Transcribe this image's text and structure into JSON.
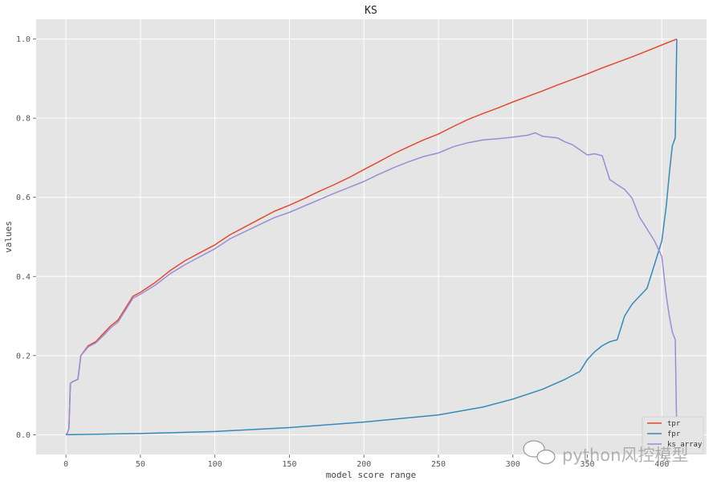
{
  "chart_data": {
    "type": "line",
    "title": "KS",
    "xlabel": "model score range",
    "ylabel": "values",
    "xlim": [
      -20,
      430
    ],
    "ylim": [
      -0.05,
      1.05
    ],
    "xticks": [
      0,
      50,
      100,
      150,
      200,
      250,
      300,
      350,
      400
    ],
    "yticks": [
      0.0,
      0.2,
      0.4,
      0.6,
      0.8,
      1.0
    ],
    "grid": true,
    "legend_position": "lower-right",
    "series": [
      {
        "name": "tpr",
        "color": "#e24a33",
        "x": [
          0,
          1,
          2,
          3,
          5,
          8,
          10,
          15,
          20,
          25,
          30,
          35,
          40,
          45,
          50,
          60,
          70,
          80,
          90,
          100,
          110,
          120,
          130,
          140,
          150,
          160,
          170,
          180,
          190,
          200,
          210,
          220,
          230,
          240,
          250,
          260,
          270,
          280,
          290,
          300,
          310,
          320,
          330,
          340,
          350,
          360,
          370,
          380,
          390,
          400,
          410
        ],
        "y": [
          0.0,
          0.005,
          0.015,
          0.13,
          0.135,
          0.14,
          0.2,
          0.225,
          0.235,
          0.255,
          0.275,
          0.29,
          0.32,
          0.35,
          0.36,
          0.385,
          0.415,
          0.44,
          0.46,
          0.48,
          0.505,
          0.525,
          0.545,
          0.565,
          0.58,
          0.597,
          0.615,
          0.632,
          0.65,
          0.67,
          0.69,
          0.71,
          0.728,
          0.745,
          0.76,
          0.779,
          0.797,
          0.812,
          0.826,
          0.841,
          0.855,
          0.869,
          0.884,
          0.898,
          0.912,
          0.927,
          0.941,
          0.955,
          0.97,
          0.985,
          1.0
        ]
      },
      {
        "name": "fpr",
        "color": "#348abd",
        "x": [
          0,
          50,
          100,
          150,
          200,
          250,
          280,
          300,
          320,
          335,
          345,
          350,
          355,
          360,
          365,
          370,
          375,
          380,
          385,
          390,
          395,
          400,
          403,
          405,
          407,
          409,
          410
        ],
        "y": [
          0.0,
          0.003,
          0.008,
          0.018,
          0.032,
          0.05,
          0.07,
          0.09,
          0.115,
          0.14,
          0.16,
          0.19,
          0.21,
          0.225,
          0.235,
          0.24,
          0.3,
          0.33,
          0.35,
          0.37,
          0.43,
          0.49,
          0.58,
          0.66,
          0.73,
          0.75,
          1.0
        ]
      },
      {
        "name": "ks_array",
        "color": "#988ed5",
        "x": [
          0,
          1,
          2,
          3,
          5,
          8,
          10,
          15,
          20,
          25,
          30,
          35,
          40,
          45,
          50,
          60,
          70,
          80,
          90,
          100,
          110,
          120,
          130,
          140,
          150,
          160,
          170,
          180,
          190,
          200,
          210,
          220,
          230,
          240,
          250,
          260,
          270,
          280,
          290,
          300,
          310,
          315,
          320,
          330,
          335,
          340,
          345,
          350,
          355,
          360,
          365,
          370,
          375,
          380,
          385,
          390,
          395,
          400,
          403,
          405,
          407,
          409,
          410
        ],
        "y": [
          0.0,
          0.005,
          0.015,
          0.13,
          0.135,
          0.14,
          0.2,
          0.222,
          0.232,
          0.25,
          0.27,
          0.285,
          0.315,
          0.345,
          0.355,
          0.378,
          0.407,
          0.43,
          0.45,
          0.47,
          0.495,
          0.513,
          0.531,
          0.549,
          0.562,
          0.578,
          0.594,
          0.61,
          0.625,
          0.64,
          0.658,
          0.675,
          0.69,
          0.703,
          0.712,
          0.728,
          0.738,
          0.745,
          0.748,
          0.752,
          0.757,
          0.763,
          0.754,
          0.75,
          0.74,
          0.733,
          0.72,
          0.707,
          0.71,
          0.705,
          0.645,
          0.632,
          0.62,
          0.598,
          0.55,
          0.52,
          0.49,
          0.45,
          0.35,
          0.3,
          0.26,
          0.24,
          0.0
        ]
      }
    ]
  },
  "watermark": {
    "text": "python风控模型",
    "icon": "wechat-icon"
  }
}
